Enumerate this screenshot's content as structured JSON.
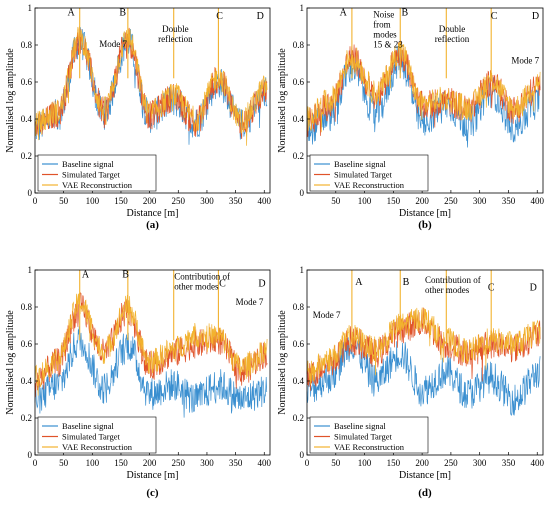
{
  "colors": {
    "baseline": "#3a8fd0",
    "simulated": "#e0532a",
    "vae": "#f2b22e",
    "axis": "#000000"
  },
  "chart_data": [
    {
      "type": "line",
      "panel_label": "(a)",
      "xlabel": "Distance [m]",
      "ylabel": "Normalised log amplitude",
      "xlim": [
        0,
        410
      ],
      "ylim": [
        0,
        1
      ],
      "xticks": [
        "0",
        "50",
        "100",
        "150",
        "200",
        "250",
        "300",
        "350",
        "400"
      ],
      "yticks": [
        "0",
        "0.2",
        "0.4",
        "0.6",
        "0.8",
        "1"
      ],
      "grid": false,
      "legend_position": "bottom-left",
      "peak_labels": [
        {
          "text": "A",
          "x": 63,
          "y": 0.96
        },
        {
          "text": "B",
          "x": 153,
          "y": 0.96
        },
        {
          "text": "C",
          "x": 322,
          "y": 0.94
        },
        {
          "text": "D",
          "x": 393,
          "y": 0.94
        }
      ],
      "annotations": [
        {
          "lines": [
            "Mode 7"
          ],
          "x": 112,
          "y": 0.79
        },
        {
          "lines": [
            "Double",
            "reflection"
          ],
          "x": 245,
          "y": 0.87,
          "anchor": "middle"
        }
      ],
      "series": [
        {
          "name": "Baseline signal",
          "baseline": [
            [
              0,
              0.35
            ],
            [
              40,
              0.42
            ],
            [
              78,
              0.82
            ],
            [
              120,
              0.43
            ],
            [
              162,
              0.82
            ],
            [
              200,
              0.41
            ],
            [
              242,
              0.5
            ],
            [
              280,
              0.38
            ],
            [
              320,
              0.6
            ],
            [
              360,
              0.37
            ],
            [
              405,
              0.55
            ]
          ]
        },
        {
          "name": "Simulated Target",
          "baseline": [
            [
              0,
              0.35
            ],
            [
              40,
              0.43
            ],
            [
              78,
              0.83
            ],
            [
              120,
              0.44
            ],
            [
              162,
              0.83
            ],
            [
              200,
              0.42
            ],
            [
              242,
              0.52
            ],
            [
              280,
              0.38
            ],
            [
              320,
              0.62
            ],
            [
              360,
              0.37
            ],
            [
              405,
              0.56
            ]
          ]
        },
        {
          "name": "VAE Reconstruction",
          "baseline": [
            [
              0,
              0.37
            ],
            [
              40,
              0.44
            ],
            [
              78,
              0.84
            ],
            [
              120,
              0.45
            ],
            [
              162,
              0.84
            ],
            [
              200,
              0.43
            ],
            [
              242,
              0.53
            ],
            [
              280,
              0.4
            ],
            [
              320,
              0.63
            ],
            [
              360,
              0.39
            ],
            [
              405,
              0.58
            ]
          ]
        }
      ]
    },
    {
      "type": "line",
      "panel_label": "(b)",
      "xlabel": "Distance [m]",
      "ylabel": "Normalised log amplitude",
      "xlim": [
        0,
        410
      ],
      "ylim": [
        0,
        1
      ],
      "xticks": [
        "50",
        "100",
        "150",
        "200",
        "250",
        "300",
        "350",
        "400"
      ],
      "yticks": [
        "0",
        "0.2",
        "0.4",
        "0.6",
        "0.8",
        "1"
      ],
      "grid": false,
      "legend_position": "bottom-left",
      "peak_labels": [
        {
          "text": "A",
          "x": 63,
          "y": 0.96
        },
        {
          "text": "B",
          "x": 170,
          "y": 0.96
        },
        {
          "text": "C",
          "x": 325,
          "y": 0.94
        },
        {
          "text": "D",
          "x": 397,
          "y": 0.94
        }
      ],
      "annotations": [
        {
          "lines": [
            "Noise",
            "from",
            "modes",
            "15 & 23"
          ],
          "x": 115,
          "y": 0.95
        },
        {
          "lines": [
            "Double",
            "reflection"
          ],
          "x": 252,
          "y": 0.87,
          "anchor": "middle"
        },
        {
          "lines": [
            "Mode 7"
          ],
          "x": 355,
          "y": 0.7
        }
      ],
      "series": [
        {
          "name": "Baseline signal",
          "baseline": [
            [
              0,
              0.34
            ],
            [
              40,
              0.42
            ],
            [
              78,
              0.68
            ],
            [
              120,
              0.43
            ],
            [
              162,
              0.72
            ],
            [
              200,
              0.38
            ],
            [
              242,
              0.48
            ],
            [
              280,
              0.37
            ],
            [
              320,
              0.55
            ],
            [
              360,
              0.36
            ],
            [
              405,
              0.5
            ]
          ]
        },
        {
          "name": "Simulated Target",
          "baseline": [
            [
              0,
              0.38
            ],
            [
              40,
              0.48
            ],
            [
              78,
              0.73
            ],
            [
              120,
              0.52
            ],
            [
              162,
              0.76
            ],
            [
              200,
              0.47
            ],
            [
              242,
              0.5
            ],
            [
              280,
              0.45
            ],
            [
              320,
              0.6
            ],
            [
              360,
              0.45
            ],
            [
              405,
              0.58
            ]
          ]
        },
        {
          "name": "VAE Reconstruction",
          "baseline": [
            [
              0,
              0.4
            ],
            [
              40,
              0.5
            ],
            [
              78,
              0.74
            ],
            [
              120,
              0.54
            ],
            [
              162,
              0.77
            ],
            [
              200,
              0.48
            ],
            [
              242,
              0.51
            ],
            [
              280,
              0.46
            ],
            [
              320,
              0.61
            ],
            [
              360,
              0.46
            ],
            [
              405,
              0.6
            ]
          ]
        }
      ]
    },
    {
      "type": "line",
      "panel_label": "(c)",
      "xlabel": "Distance [m]",
      "ylabel": "Normalised log amplitude",
      "xlim": [
        0,
        410
      ],
      "ylim": [
        0,
        1
      ],
      "xticks": [
        "0",
        "50",
        "100",
        "150",
        "200",
        "250",
        "300",
        "350",
        "400"
      ],
      "yticks": [
        "0",
        "0.2",
        "0.4",
        "0.6",
        "0.8",
        "1"
      ],
      "grid": false,
      "legend_position": "bottom-left",
      "peak_labels": [
        {
          "text": "A",
          "x": 88,
          "y": 0.96
        },
        {
          "text": "B",
          "x": 158,
          "y": 0.96
        },
        {
          "text": "C",
          "x": 327,
          "y": 0.91
        },
        {
          "text": "D",
          "x": 396,
          "y": 0.91
        }
      ],
      "annotations": [
        {
          "lines": [
            "Contribution of",
            "other modes"
          ],
          "x": 243,
          "y": 0.95
        },
        {
          "lines": [
            "Mode 7"
          ],
          "x": 350,
          "y": 0.81
        }
      ],
      "series": [
        {
          "name": "Baseline signal",
          "baseline": [
            [
              0,
              0.3
            ],
            [
              40,
              0.38
            ],
            [
              78,
              0.62
            ],
            [
              120,
              0.36
            ],
            [
              162,
              0.6
            ],
            [
              200,
              0.33
            ],
            [
              242,
              0.38
            ],
            [
              280,
              0.3
            ],
            [
              320,
              0.38
            ],
            [
              360,
              0.3
            ],
            [
              405,
              0.35
            ]
          ]
        },
        {
          "name": "Simulated Target",
          "baseline": [
            [
              0,
              0.4
            ],
            [
              40,
              0.5
            ],
            [
              78,
              0.8
            ],
            [
              120,
              0.55
            ],
            [
              162,
              0.78
            ],
            [
              200,
              0.48
            ],
            [
              242,
              0.55
            ],
            [
              280,
              0.6
            ],
            [
              320,
              0.62
            ],
            [
              360,
              0.45
            ],
            [
              405,
              0.55
            ]
          ]
        },
        {
          "name": "VAE Reconstruction",
          "baseline": [
            [
              0,
              0.42
            ],
            [
              40,
              0.52
            ],
            [
              78,
              0.82
            ],
            [
              120,
              0.56
            ],
            [
              162,
              0.8
            ],
            [
              200,
              0.5
            ],
            [
              242,
              0.57
            ],
            [
              280,
              0.65
            ],
            [
              320,
              0.64
            ],
            [
              360,
              0.47
            ],
            [
              405,
              0.57
            ]
          ]
        }
      ]
    },
    {
      "type": "line",
      "panel_label": "(d)",
      "xlabel": "Distance [m]",
      "ylabel": "Normalised log amplitude",
      "xlim": [
        0,
        410
      ],
      "ylim": [
        0,
        1
      ],
      "xticks": [
        "0",
        "50",
        "100",
        "150",
        "200",
        "250",
        "300",
        "350",
        "400"
      ],
      "yticks": [
        "0",
        "0.2",
        "0.4",
        "0.6",
        "0.8",
        "1"
      ],
      "grid": false,
      "legend_position": "bottom-left",
      "peak_labels": [
        {
          "text": "A",
          "x": 90,
          "y": 0.92
        },
        {
          "text": "B",
          "x": 172,
          "y": 0.92
        },
        {
          "text": "C",
          "x": 320,
          "y": 0.89
        },
        {
          "text": "D",
          "x": 393,
          "y": 0.89
        }
      ],
      "annotations": [
        {
          "lines": [
            "Mode 7"
          ],
          "x": 10,
          "y": 0.74
        },
        {
          "lines": [
            "Contribution of",
            "other modes"
          ],
          "x": 205,
          "y": 0.93
        }
      ],
      "series": [
        {
          "name": "Baseline signal",
          "baseline": [
            [
              0,
              0.35
            ],
            [
              40,
              0.42
            ],
            [
              78,
              0.6
            ],
            [
              120,
              0.4
            ],
            [
              162,
              0.55
            ],
            [
              200,
              0.35
            ],
            [
              242,
              0.45
            ],
            [
              280,
              0.33
            ],
            [
              320,
              0.42
            ],
            [
              360,
              0.3
            ],
            [
              405,
              0.45
            ]
          ]
        },
        {
          "name": "Simulated Target",
          "baseline": [
            [
              0,
              0.42
            ],
            [
              40,
              0.5
            ],
            [
              78,
              0.62
            ],
            [
              120,
              0.55
            ],
            [
              162,
              0.68
            ],
            [
              200,
              0.72
            ],
            [
              242,
              0.6
            ],
            [
              280,
              0.55
            ],
            [
              320,
              0.6
            ],
            [
              360,
              0.58
            ],
            [
              405,
              0.65
            ]
          ]
        },
        {
          "name": "VAE Reconstruction",
          "baseline": [
            [
              0,
              0.44
            ],
            [
              40,
              0.52
            ],
            [
              78,
              0.64
            ],
            [
              120,
              0.57
            ],
            [
              162,
              0.7
            ],
            [
              200,
              0.74
            ],
            [
              242,
              0.62
            ],
            [
              280,
              0.56
            ],
            [
              320,
              0.62
            ],
            [
              360,
              0.6
            ],
            [
              405,
              0.67
            ]
          ]
        }
      ]
    }
  ]
}
